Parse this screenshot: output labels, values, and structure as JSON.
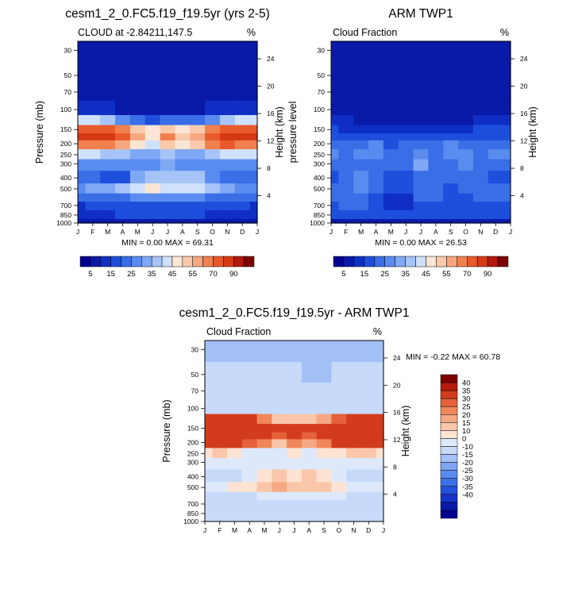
{
  "colors": {
    "seq_palette": [
      "#00008f",
      "#0a1aa8",
      "#0f2fc4",
      "#1e4fdc",
      "#3a6ee6",
      "#5a8cef",
      "#7fa8f5",
      "#a7c4f8",
      "#cfe0fb",
      "#fbe6d6",
      "#f8c9ab",
      "#f6a77f",
      "#f0814f",
      "#e85a2b",
      "#d63a15",
      "#b3190a",
      "#7f0000"
    ],
    "div_palette": [
      "#00008f",
      "#0a1aa8",
      "#1533c8",
      "#2450de",
      "#3d6fe6",
      "#5a8cef",
      "#7ea6f3",
      "#a3c0f6",
      "#c7daf9",
      "#dde9fb",
      "#fde3d2",
      "#f9c6a9",
      "#f5a883",
      "#ef875a",
      "#e4613a",
      "#d23c1c",
      "#b51b0b",
      "#7f0000"
    ]
  },
  "chart_data": [
    {
      "type": "heatmap",
      "title": "cesm1_2_0.FC5.f19_f19.5yr (yrs 2-5)",
      "left_string": "CLOUD at -2.84211,147.5",
      "right_string": "%",
      "ylabel": "Pressure (mb)",
      "y2label": "Height (km)",
      "months": [
        "J",
        "F",
        "M",
        "A",
        "M",
        "J",
        "J",
        "A",
        "S",
        "O",
        "N",
        "D",
        "J"
      ],
      "pressure_ticks": [
        30,
        50,
        70,
        100,
        150,
        200,
        250,
        300,
        400,
        500,
        700,
        850,
        1000
      ],
      "pressure_tick_labels": [
        "30",
        "50",
        "70",
        "100",
        "150",
        "200",
        "250",
        "300",
        "400",
        "500",
        "700",
        "850",
        "1000"
      ],
      "height_ticks": [
        24,
        20,
        16,
        12,
        8,
        4
      ],
      "height_tick_labels": [
        "24",
        "20",
        "16",
        "12",
        "8",
        "4"
      ],
      "stats": "MIN =   0.00 MAX =  69.31",
      "colorbar_labels": [
        "5",
        "15",
        "25",
        "35",
        "45",
        "55",
        "70",
        "90"
      ],
      "levels": [
        0,
        5,
        10,
        15,
        20,
        25,
        30,
        35,
        40,
        45,
        50,
        55,
        60,
        65,
        70,
        80,
        90
      ],
      "pressure_levels": [
        30,
        50,
        70,
        100,
        125,
        150,
        175,
        200,
        250,
        300,
        400,
        500,
        600,
        700,
        850,
        1000
      ],
      "values": [
        [
          1,
          1,
          1,
          1,
          1,
          1,
          1,
          1,
          1,
          1,
          1,
          1,
          1
        ],
        [
          1,
          1,
          1,
          1,
          1,
          1,
          1,
          1,
          1,
          1,
          1,
          1,
          1
        ],
        [
          2,
          2,
          2,
          2,
          2,
          1,
          1,
          1,
          2,
          2,
          2,
          2,
          2
        ],
        [
          8,
          6,
          5,
          4,
          4,
          3,
          3,
          3,
          4,
          5,
          6,
          7,
          8
        ],
        [
          38,
          35,
          30,
          24,
          18,
          14,
          15,
          15,
          18,
          24,
          30,
          35,
          38
        ],
        [
          60,
          64,
          62,
          55,
          48,
          40,
          48,
          42,
          48,
          58,
          62,
          62,
          60
        ],
        [
          66,
          69,
          68,
          62,
          52,
          42,
          55,
          45,
          54,
          64,
          68,
          68,
          66
        ],
        [
          55,
          58,
          56,
          50,
          44,
          38,
          48,
          40,
          46,
          56,
          60,
          58,
          55
        ],
        [
          35,
          36,
          34,
          30,
          26,
          25,
          30,
          28,
          28,
          34,
          38,
          36,
          35
        ],
        [
          24,
          22,
          22,
          20,
          20,
          22,
          25,
          24,
          24,
          22,
          22,
          22,
          24
        ],
        [
          18,
          16,
          14,
          12,
          26,
          34,
          32,
          32,
          30,
          22,
          18,
          18,
          18
        ],
        [
          22,
          26,
          28,
          30,
          36,
          40,
          38,
          38,
          36,
          30,
          26,
          24,
          22
        ],
        [
          15,
          16,
          16,
          18,
          20,
          22,
          22,
          20,
          20,
          18,
          17,
          16,
          15
        ],
        [
          9,
          10,
          10,
          11,
          12,
          14,
          13,
          12,
          12,
          11,
          10,
          10,
          9
        ],
        [
          8,
          9,
          9,
          10,
          10,
          11,
          11,
          10,
          10,
          9,
          9,
          8,
          8
        ],
        [
          3,
          3,
          3,
          3,
          3,
          3,
          3,
          3,
          3,
          3,
          3,
          3,
          3
        ]
      ]
    },
    {
      "type": "heatmap",
      "title": "ARM TWP1",
      "left_string": "Cloud Fraction",
      "right_string": "%",
      "ylabel": "pressure level",
      "y2label": "Height (km)",
      "months": [
        "J",
        "F",
        "M",
        "A",
        "M",
        "J",
        "J",
        "A",
        "S",
        "O",
        "N",
        "D",
        "J"
      ],
      "pressure_ticks": [
        30,
        50,
        70,
        100,
        150,
        200,
        250,
        300,
        400,
        500,
        700,
        850,
        1000
      ],
      "pressure_tick_labels": [
        "30",
        "50",
        "70",
        "100",
        "150",
        "200",
        "250",
        "300",
        "400",
        "500",
        "700",
        "850",
        "1000"
      ],
      "height_ticks": [
        24,
        20,
        16,
        12,
        8,
        4
      ],
      "height_tick_labels": [
        "24",
        "20",
        "16",
        "12",
        "8",
        "4"
      ],
      "stats": "MIN =   0.00 MAX =  26.53",
      "colorbar_labels": [
        "5",
        "15",
        "25",
        "35",
        "45",
        "55",
        "70",
        "90"
      ],
      "levels": [
        0,
        5,
        10,
        15,
        20,
        25,
        30,
        35,
        40,
        45,
        50,
        55,
        60,
        65,
        70,
        80,
        90
      ],
      "pressure_levels": [
        30,
        50,
        70,
        100,
        125,
        150,
        175,
        200,
        250,
        300,
        400,
        500,
        600,
        700,
        850,
        1000
      ],
      "values": [
        [
          0,
          0,
          0,
          0,
          0,
          0,
          0,
          0,
          0,
          0,
          0,
          0,
          0
        ],
        [
          0,
          0,
          0,
          0,
          0,
          0,
          0,
          0,
          0,
          0,
          0,
          0,
          0
        ],
        [
          1,
          1,
          1,
          1,
          1,
          1,
          1,
          1,
          1,
          1,
          1,
          1,
          1
        ],
        [
          2,
          2,
          2,
          2,
          2,
          2,
          2,
          2,
          2,
          2,
          2,
          2,
          2
        ],
        [
          6,
          5,
          4,
          3,
          2,
          2,
          2,
          2,
          3,
          4,
          6,
          7,
          6
        ],
        [
          10,
          9,
          8,
          7,
          6,
          6,
          7,
          7,
          8,
          9,
          11,
          12,
          10
        ],
        [
          13,
          12,
          12,
          11,
          10,
          10,
          11,
          11,
          12,
          13,
          14,
          14,
          13
        ],
        [
          18,
          15,
          18,
          20,
          14,
          16,
          18,
          16,
          22,
          18,
          16,
          15,
          18
        ],
        [
          20,
          17,
          20,
          22,
          16,
          18,
          24,
          18,
          20,
          22,
          17,
          20,
          20
        ],
        [
          17,
          16,
          17,
          19,
          15,
          16,
          26,
          17,
          18,
          20,
          16,
          18,
          17
        ],
        [
          14,
          15,
          20,
          16,
          13,
          14,
          19,
          15,
          15,
          18,
          17,
          12,
          14
        ],
        [
          16,
          18,
          22,
          18,
          12,
          14,
          18,
          16,
          14,
          16,
          18,
          17,
          16
        ],
        [
          16,
          17,
          19,
          11,
          8,
          9,
          16,
          15,
          14,
          14,
          17,
          16,
          16
        ],
        [
          14,
          15,
          16,
          10,
          8,
          9,
          14,
          13,
          12,
          12,
          14,
          14,
          14
        ],
        [
          12,
          13,
          13,
          11,
          10,
          10,
          12,
          11,
          10,
          10,
          12,
          12,
          12
        ],
        [
          3,
          3,
          3,
          3,
          3,
          3,
          3,
          3,
          3,
          3,
          3,
          3,
          3
        ]
      ]
    },
    {
      "type": "heatmap",
      "title": "cesm1_2_0.FC5.f19_f19.5yr - ARM TWP1",
      "left_string": "Cloud Fraction",
      "right_string": "%",
      "ylabel": "Pressure (mb)",
      "y2label": "Height (km)",
      "months": [
        "J",
        "F",
        "M",
        "A",
        "M",
        "J",
        "J",
        "A",
        "S",
        "O",
        "N",
        "D",
        "J"
      ],
      "pressure_ticks": [
        30,
        50,
        70,
        100,
        150,
        200,
        250,
        300,
        400,
        500,
        700,
        850,
        1000
      ],
      "pressure_tick_labels": [
        "30",
        "50",
        "70",
        "100",
        "150",
        "200",
        "250",
        "300",
        "400",
        "500",
        "700",
        "850",
        "1000"
      ],
      "height_ticks": [
        24,
        20,
        16,
        12,
        8,
        4
      ],
      "height_tick_labels": [
        "24",
        "20",
        "16",
        "12",
        "8",
        "4"
      ],
      "stats": "MIN =  -0.22 MAX =  60.78",
      "colorbar_labels": [
        "40",
        "35",
        "30",
        "25",
        "20",
        "15",
        "10",
        "0",
        "-10",
        "-15",
        "-20",
        "-25",
        "-30",
        "-35",
        "-40"
      ],
      "levels": [
        -40,
        -35,
        -30,
        -25,
        -20,
        -15,
        -10,
        0,
        10,
        15,
        20,
        25,
        30,
        35,
        40
      ],
      "pressure_levels": [
        30,
        50,
        70,
        100,
        125,
        150,
        175,
        200,
        250,
        300,
        400,
        500,
        600,
        700,
        850,
        1000
      ],
      "values": [
        [
          -0.1,
          -0.1,
          -0.1,
          -0.1,
          -0.1,
          -0.1,
          -0.1,
          -0.1,
          -0.1,
          -0.1,
          -0.1,
          -0.1,
          -0.1
        ],
        [
          2,
          2,
          2,
          2,
          2,
          2,
          2,
          -0.1,
          -0.1,
          2,
          2,
          2,
          2
        ],
        [
          3,
          3,
          3,
          3,
          3,
          3,
          3,
          2,
          2,
          3,
          3,
          3,
          3
        ],
        [
          8,
          6,
          5,
          4,
          4,
          3,
          3,
          3,
          4,
          5,
          6,
          7,
          8
        ],
        [
          50,
          48,
          46,
          40,
          30,
          22,
          22,
          22,
          26,
          36,
          44,
          48,
          50
        ],
        [
          55,
          58,
          56,
          50,
          45,
          40,
          42,
          40,
          42,
          52,
          55,
          55,
          55
        ],
        [
          58,
          60,
          58,
          54,
          45,
          38,
          45,
          38,
          46,
          56,
          58,
          58,
          58
        ],
        [
          42,
          45,
          42,
          35,
          32,
          24,
          32,
          26,
          30,
          40,
          46,
          44,
          42
        ],
        [
          18,
          20,
          18,
          14,
          14,
          12,
          18,
          14,
          16,
          18,
          22,
          20,
          18
        ],
        [
          10,
          10,
          10,
          10,
          10,
          12,
          14,
          12,
          12,
          10,
          10,
          10,
          10
        ],
        [
          8,
          6,
          8,
          10,
          16,
          20,
          18,
          20,
          18,
          14,
          8,
          8,
          8
        ],
        [
          12,
          14,
          16,
          18,
          24,
          26,
          22,
          24,
          22,
          16,
          14,
          14,
          12
        ],
        [
          8,
          9,
          8,
          9,
          12,
          13,
          11,
          12,
          12,
          10,
          9,
          9,
          8
        ],
        [
          5,
          5,
          5,
          5,
          6,
          6,
          6,
          5,
          5,
          5,
          5,
          5,
          5
        ],
        [
          4,
          4,
          4,
          4,
          4,
          4,
          4,
          4,
          4,
          4,
          4,
          4,
          4
        ],
        [
          2,
          2,
          2,
          2,
          2,
          2,
          2,
          2,
          2,
          2,
          2,
          2,
          2
        ]
      ]
    }
  ]
}
